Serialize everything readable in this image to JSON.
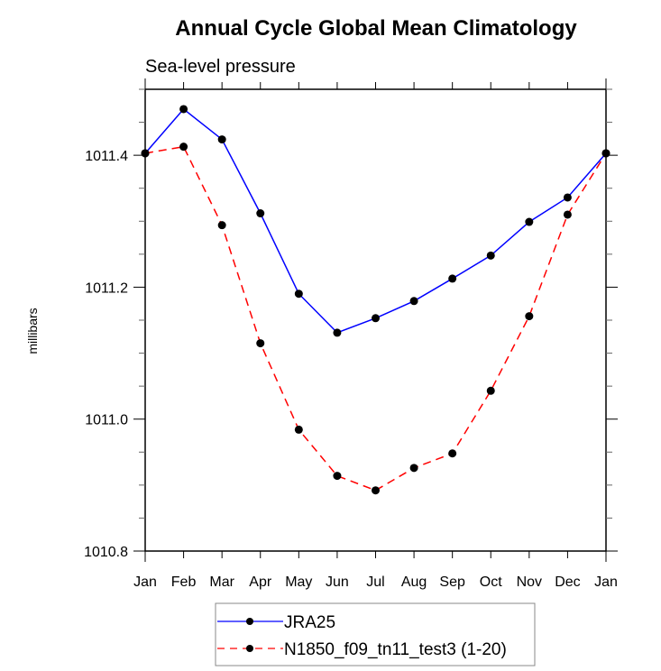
{
  "chart_data": {
    "type": "line",
    "title": "Annual Cycle Global Mean Climatology",
    "subtitle": "Sea-level pressure",
    "xlabel": "",
    "ylabel": "millibars",
    "categories": [
      "Jan",
      "Feb",
      "Mar",
      "Apr",
      "May",
      "Jun",
      "Jul",
      "Aug",
      "Sep",
      "Oct",
      "Nov",
      "Dec",
      "Jan"
    ],
    "ylim": [
      1010.8,
      1011.5
    ],
    "yticks": [
      "1010.8",
      "1011.0",
      "1011.2",
      "1011.4"
    ],
    "ytick_values": [
      1010.8,
      1011.0,
      1011.2,
      1011.4
    ],
    "yminor_step": 0.05,
    "grid": false,
    "legend_position": "bottom-center",
    "series": [
      {
        "name": "JRA25",
        "color": "#0000ff",
        "style": "solid",
        "marker": "filled-circle",
        "values": [
          1011.403,
          1011.47,
          1011.424,
          1011.312,
          1011.19,
          1011.131,
          1011.153,
          1011.179,
          1011.213,
          1011.248,
          1011.299,
          1011.336,
          1011.403
        ]
      },
      {
        "name": "N1850_f09_tn11_test3 (1-20)",
        "color": "#ff0000",
        "style": "dashed",
        "marker": "filled-circle",
        "values": [
          1011.403,
          1011.413,
          1011.294,
          1011.115,
          1010.984,
          1010.914,
          1010.892,
          1010.926,
          1010.948,
          1011.043,
          1011.156,
          1011.31,
          1011.403
        ]
      }
    ]
  }
}
